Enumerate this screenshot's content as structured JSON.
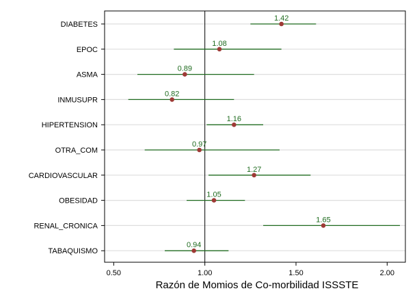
{
  "chart_data": {
    "type": "scatter",
    "subtype": "forest-plot",
    "title": "",
    "xlabel": "Razón de Momios de Co-morbilidad ISSSTE",
    "ylabel": "",
    "xlim": [
      0.45,
      2.1
    ],
    "xticks": [
      0.5,
      1.0,
      1.5,
      2.0
    ],
    "xtick_labels": [
      "0.50",
      "1.00",
      "1.50",
      "2.00"
    ],
    "reference_line": 1.0,
    "grid": "horizontal",
    "categories": [
      "DIABETES",
      "EPOC",
      "ASMA",
      "INMUSUPR",
      "HIPERTENSION",
      "OTRA_COM",
      "CARDIOVASCULAR",
      "OBESIDAD",
      "RENAL_CRONICA",
      "TABAQUISMO"
    ],
    "estimates": [
      1.42,
      1.08,
      0.89,
      0.82,
      1.16,
      0.97,
      1.27,
      1.05,
      1.65,
      0.94
    ],
    "ci_lower": [
      1.25,
      0.83,
      0.63,
      0.58,
      1.01,
      0.67,
      1.02,
      0.9,
      1.32,
      0.78
    ],
    "ci_upper": [
      1.61,
      1.42,
      1.27,
      1.16,
      1.32,
      1.41,
      1.58,
      1.22,
      2.07,
      1.13
    ],
    "labels": [
      "1.42",
      "1.08",
      "0.89",
      "0.82",
      "1.16",
      "0.97",
      "1.27",
      "1.05",
      "1.65",
      "0.94"
    ],
    "colors": {
      "point": "#9e3a36",
      "ci": "#1f6b1f",
      "label": "#1f6b1f",
      "grid": "#dedede",
      "axis": "#000000"
    }
  }
}
